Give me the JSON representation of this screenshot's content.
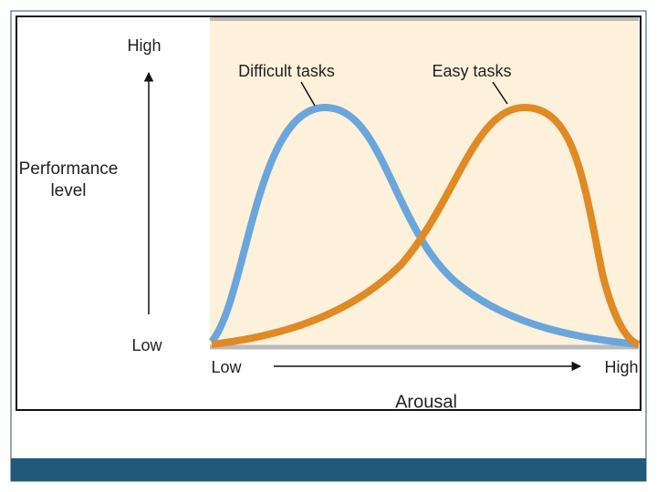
{
  "y_axis": {
    "title": "Performance level",
    "high": "High",
    "low": "Low"
  },
  "x_axis": {
    "title": "Arousal",
    "low": "Low",
    "high": "High"
  },
  "curves": [
    {
      "label": "Difficult tasks"
    },
    {
      "label": "Easy tasks"
    }
  ]
}
